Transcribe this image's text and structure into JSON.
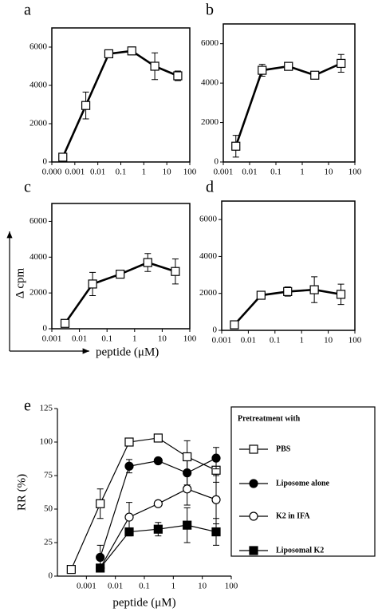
{
  "labels": {
    "y": "Δ cpm",
    "x": "peptide (μM)"
  },
  "chart_data": [
    {
      "type": "line",
      "panel": "a",
      "xscale": "log",
      "xlim": [
        0.0001,
        100
      ],
      "xticks": [
        {
          "value": 0.0001,
          "label": "0.000"
        },
        0.001,
        0.01,
        0.1,
        1,
        10,
        100
      ],
      "ylim": [
        0,
        7000
      ],
      "yticks": [
        0,
        2000,
        4000,
        6000
      ],
      "x": [
        0.0003,
        0.003,
        0.03,
        0.3,
        3,
        30
      ],
      "series": [
        {
          "color": "#000000",
          "marker": "square",
          "marker_fill": "#ffffff",
          "values": [
            250,
            2950,
            5650,
            5800,
            5000,
            4500
          ],
          "errors": [
            0,
            700,
            200,
            200,
            700,
            250
          ]
        }
      ]
    },
    {
      "type": "line",
      "panel": "b",
      "xscale": "log",
      "xlim": [
        0.001,
        100
      ],
      "xticks": [
        0.001,
        0.01,
        0.1,
        1,
        10,
        100
      ],
      "ylim": [
        0,
        7000
      ],
      "yticks": [
        0,
        2000,
        4000,
        6000
      ],
      "x": [
        0.003,
        0.03,
        0.3,
        3,
        30
      ],
      "series": [
        {
          "color": "#000000",
          "marker": "square",
          "marker_fill": "#ffffff",
          "values": [
            800,
            4650,
            4850,
            4400,
            5000
          ],
          "errors": [
            550,
            300,
            100,
            100,
            450
          ]
        }
      ]
    },
    {
      "type": "line",
      "panel": "c",
      "xscale": "log",
      "xlim": [
        0.001,
        100
      ],
      "xticks": [
        0.001,
        0.01,
        0.1,
        1,
        10,
        100
      ],
      "ylim": [
        0,
        7000
      ],
      "yticks": [
        0,
        2000,
        4000,
        6000
      ],
      "x": [
        0.003,
        0.03,
        0.3,
        3,
        30
      ],
      "series": [
        {
          "color": "#000000",
          "marker": "square",
          "marker_fill": "#ffffff",
          "values": [
            300,
            2500,
            3050,
            3700,
            3200
          ],
          "errors": [
            0,
            650,
            100,
            500,
            700
          ]
        }
      ]
    },
    {
      "type": "line",
      "panel": "d",
      "xscale": "log",
      "xlim": [
        0.001,
        100
      ],
      "xticks": [
        0.001,
        0.01,
        0.1,
        1,
        10,
        100
      ],
      "ylim": [
        0,
        7000
      ],
      "yticks": [
        0,
        2000,
        4000,
        6000
      ],
      "x": [
        0.003,
        0.03,
        0.3,
        3,
        30
      ],
      "series": [
        {
          "color": "#000000",
          "marker": "square",
          "marker_fill": "#ffffff",
          "values": [
            300,
            1900,
            2100,
            2200,
            1950
          ],
          "errors": [
            0,
            100,
            250,
            700,
            550
          ]
        }
      ]
    },
    {
      "type": "line",
      "panel": "e",
      "xscale": "log",
      "xlim": [
        0.0001,
        100
      ],
      "xticks": [
        0.001,
        0.01,
        0.1,
        1,
        10,
        100
      ],
      "ylim": [
        0,
        125
      ],
      "yticks": [
        0,
        25,
        50,
        75,
        100,
        125
      ],
      "xlabel": "peptide (μM)",
      "ylabel": "RR (%)",
      "legend_title": "Pretreatment with",
      "x": [
        0.0003,
        0.003,
        0.03,
        0.3,
        3,
        30
      ],
      "series": [
        {
          "name": "PBS",
          "color": "#000000",
          "marker": "square",
          "marker_fill": "#ffffff",
          "values": [
            5,
            54,
            100,
            103,
            89,
            79
          ],
          "errors": [
            null,
            11,
            null,
            null,
            12,
            9
          ]
        },
        {
          "name": "Liposome alone",
          "color": "#000000",
          "marker": "circle",
          "marker_fill": "#000000",
          "values": [
            null,
            14,
            82,
            86,
            77,
            88
          ],
          "errors": [
            null,
            9,
            5,
            null,
            9,
            8
          ]
        },
        {
          "name": "K2 in IFA",
          "color": "#000000",
          "marker": "circle",
          "marker_fill": "#ffffff",
          "values": [
            null,
            6,
            44,
            54,
            65,
            57
          ],
          "errors": [
            null,
            null,
            11,
            null,
            12,
            18
          ]
        },
        {
          "name": "Liposomal K2",
          "color": "#000000",
          "marker": "square",
          "marker_fill": "#000000",
          "values": [
            null,
            6,
            33,
            35,
            38,
            33
          ],
          "errors": [
            null,
            null,
            3,
            5,
            13,
            10
          ]
        }
      ]
    }
  ]
}
